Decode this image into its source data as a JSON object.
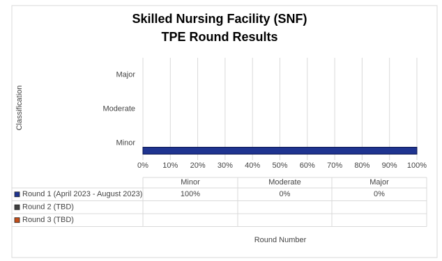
{
  "chart_data": {
    "type": "bar",
    "orientation": "horizontal",
    "title": [
      "Skilled Nursing Facility (SNF)",
      "TPE Round Results"
    ],
    "y_label": "Classification",
    "x_label": "Round Number",
    "categories": [
      "Minor",
      "Moderate",
      "Major"
    ],
    "series": [
      {
        "name": "Round 1 (April 2023 - August 2023)",
        "color": "#1f3490",
        "values": [
          100,
          0,
          0
        ],
        "value_labels": [
          "100%",
          "0%",
          "0%"
        ]
      },
      {
        "name": "Round 2 (TBD)",
        "color": "#404040",
        "values": [
          null,
          null,
          null
        ]
      },
      {
        "name": "Round 3 (TBD)",
        "color": "#c5501a",
        "values": [
          null,
          null,
          null
        ]
      }
    ],
    "xlim": [
      0,
      100
    ],
    "xticks": [
      {
        "value": 0,
        "label": "0%"
      },
      {
        "value": 10,
        "label": "10%"
      },
      {
        "value": 20,
        "label": "20%"
      },
      {
        "value": 30,
        "label": "30%"
      },
      {
        "value": 40,
        "label": "40%"
      },
      {
        "value": 50,
        "label": "50%"
      },
      {
        "value": 60,
        "label": "60%"
      },
      {
        "value": 70,
        "label": "70%"
      },
      {
        "value": 80,
        "label": "80%"
      },
      {
        "value": 90,
        "label": "90%"
      },
      {
        "value": 100,
        "label": "100%"
      }
    ],
    "grid": true,
    "data_table": true
  }
}
